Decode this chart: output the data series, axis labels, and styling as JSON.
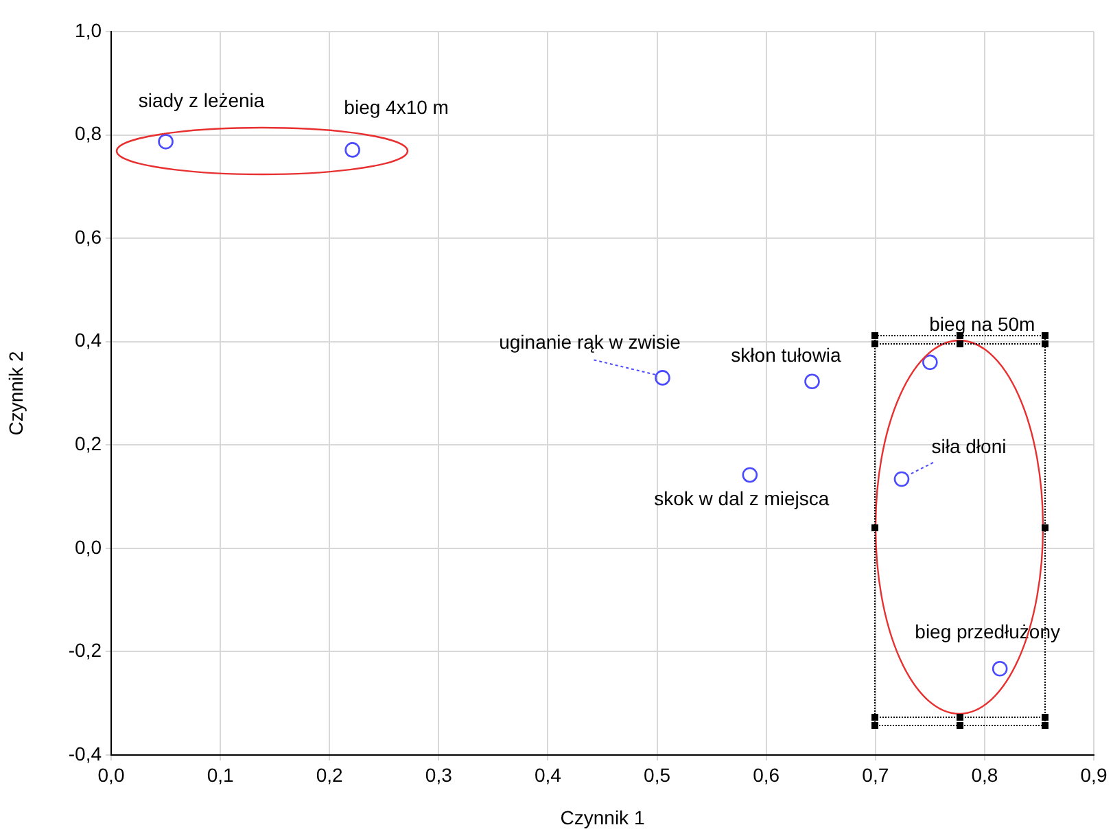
{
  "chart_data": {
    "type": "scatter",
    "xlabel": "Czynnik 1",
    "ylabel": "Czynnik 2",
    "series": [
      {
        "color": "#4a4aff",
        "x": [
          0.05,
          0.221,
          0.505,
          0.642,
          0.585,
          0.75,
          0.724,
          0.814
        ],
        "values": [
          0.787,
          0.771,
          0.33,
          0.323,
          0.142,
          0.36,
          0.134,
          -0.233
        ]
      }
    ],
    "annotations": [
      {
        "text": "siady z leżenia",
        "x": 0.05,
        "y": 0.787
      },
      {
        "text": "bieg 4x10 m",
        "x": 0.221,
        "y": 0.771
      },
      {
        "text": "uginanie rąk w zwisie",
        "x": 0.505,
        "y": 0.33
      },
      {
        "text": "skłon tułowia",
        "x": 0.642,
        "y": 0.323
      },
      {
        "text": "skok w dal z miejsca",
        "x": 0.585,
        "y": 0.142
      },
      {
        "text": "bieg na 50m",
        "x": 0.75,
        "y": 0.36
      },
      {
        "text": "siła dłoni",
        "x": 0.724,
        "y": 0.134
      },
      {
        "text": "bieg przedłużony",
        "x": 0.814,
        "y": -0.233
      }
    ],
    "xlim": [
      0,
      0.9
    ],
    "xticks": [
      {
        "value": 0,
        "label": "0,0"
      },
      {
        "value": 0.1,
        "label": "0,1"
      },
      {
        "value": 0.2,
        "label": "0,2"
      },
      {
        "value": 0.3,
        "label": "0,3"
      },
      {
        "value": 0.4,
        "label": "0,4"
      },
      {
        "value": 0.5,
        "label": "0,5"
      },
      {
        "value": 0.6,
        "label": "0,6"
      },
      {
        "value": 0.7,
        "label": "0,7"
      },
      {
        "value": 0.8,
        "label": "0,8"
      },
      {
        "value": 0.9,
        "label": "0,9"
      }
    ],
    "ylim": [
      -0.4,
      1.0
    ],
    "yticks": [
      {
        "value": -0.4,
        "label": "-0,4"
      },
      {
        "value": -0.2,
        "label": "-0,2"
      },
      {
        "value": 0,
        "label": "0,0"
      },
      {
        "value": 0.2,
        "label": "0,2"
      },
      {
        "value": 0.4,
        "label": "0,4"
      },
      {
        "value": 0.6,
        "label": "0,6"
      },
      {
        "value": 0.8,
        "label": "0,8"
      },
      {
        "value": 1.0,
        "label": "1,0"
      }
    ],
    "grid": true,
    "marker": "circle"
  }
}
